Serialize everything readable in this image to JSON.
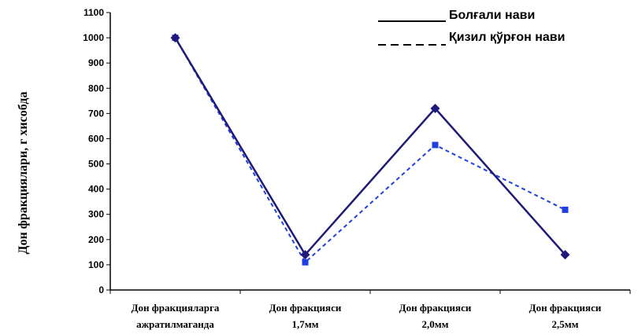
{
  "chart_data": {
    "type": "line",
    "categories": [
      [
        "Дон фракцияларга",
        "ажратилмаганда"
      ],
      [
        "Дон фракцияси",
        "1,7мм"
      ],
      [
        "Дон фракцияси",
        "2,0мм"
      ],
      [
        "Дон фракцияси",
        "2,5мм"
      ]
    ],
    "series": [
      {
        "name": "Болғали нави",
        "values": [
          1000,
          140,
          720,
          140
        ],
        "color": "#1f1a7a",
        "style": "solid",
        "marker": "diamond"
      },
      {
        "name": "Қизил қўрғон нави",
        "values": [
          1000,
          110,
          575,
          318
        ],
        "color": "#1f3fe0",
        "style": "dashed",
        "marker": "square"
      }
    ],
    "ylabel": "Дон фракциялари, г хисобда",
    "xlabel": "",
    "ylim": [
      0,
      1100
    ],
    "yticks": [
      0,
      100,
      200,
      300,
      400,
      500,
      600,
      700,
      800,
      900,
      1000,
      1100
    ],
    "grid": false,
    "legend_position": "top-right"
  }
}
